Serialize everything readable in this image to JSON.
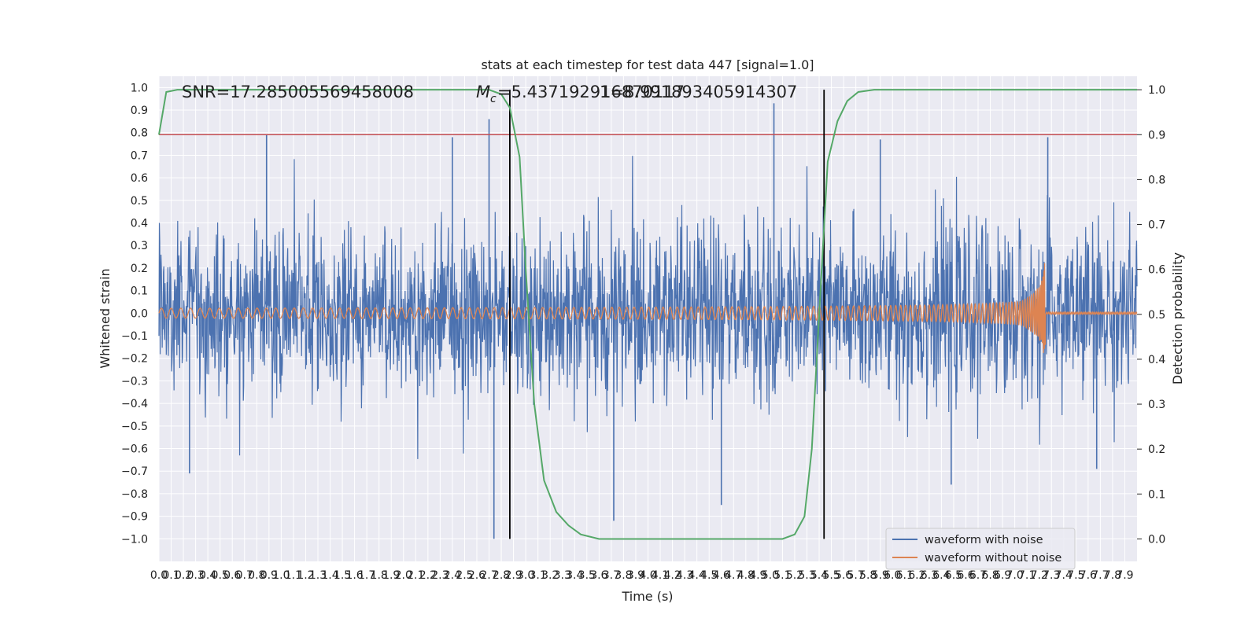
{
  "chart_data": {
    "type": "line",
    "title": "stats at each timestep for test data 447 [signal=1.0]",
    "xlabel": "Time (s)",
    "ylabel": "Whitened strain",
    "y2label": "Detection probability",
    "xlim": [
      0.0,
      8.0
    ],
    "ylim": [
      -1.1,
      1.05
    ],
    "y2lim": [
      -0.05,
      1.03
    ],
    "x_ticks": [
      "0.0",
      "0.1",
      "0.2",
      "0.3",
      "0.4",
      "0.5",
      "0.6",
      "0.7",
      "0.8",
      "0.9",
      "1.0",
      "1.1",
      "1.2",
      "1.3",
      "1.4",
      "1.5",
      "1.6",
      "1.7",
      "1.8",
      "1.9",
      "2.0",
      "2.1",
      "2.2",
      "2.3",
      "2.4",
      "2.5",
      "2.6",
      "2.7",
      "2.8",
      "2.9",
      "3.0",
      "3.1",
      "3.2",
      "3.3",
      "3.4",
      "3.5",
      "3.6",
      "3.7",
      "3.8",
      "3.9",
      "4.0",
      "4.1",
      "4.2",
      "4.3",
      "4.4",
      "4.5",
      "4.6",
      "4.7",
      "4.8",
      "4.9",
      "5.0",
      "5.1",
      "5.2",
      "5.3",
      "5.4",
      "5.5",
      "5.6",
      "5.7",
      "5.8",
      "5.9",
      "6.0",
      "6.1",
      "6.2",
      "6.3",
      "6.4",
      "6.5",
      "6.6",
      "6.7",
      "6.8",
      "6.9",
      "7.0",
      "7.1",
      "7.2",
      "7.3",
      "7.4",
      "7.5",
      "7.6",
      "7.7",
      "7.8",
      "7.9"
    ],
    "y_ticks": [
      "1.0",
      "0.9",
      "0.8",
      "0.7",
      "0.6",
      "0.5",
      "0.4",
      "0.3",
      "0.2",
      "0.1",
      "0.0",
      "−0.1",
      "−0.2",
      "−0.3",
      "−0.4",
      "−0.5",
      "−0.6",
      "−0.7",
      "−0.8",
      "−0.9",
      "−1.0"
    ],
    "y2_ticks": [
      "1.0",
      "0.9",
      "0.8",
      "0.7",
      "0.6",
      "0.5",
      "0.4",
      "0.3",
      "0.2",
      "0.1",
      "0.0"
    ],
    "annotations": {
      "snr": "SNR=17.285005569458008",
      "mc": "=5.437192916870117",
      "mc_prefix": "M",
      "mc_sub": "c",
      "overlap": "1=8.991893405914307"
    },
    "threshold": 0.9,
    "vertical_lines": [
      2.87,
      5.44
    ],
    "noise_spikes": [
      {
        "t": 0.88,
        "y": 0.79
      },
      {
        "t": 2.7,
        "y": 0.86
      },
      {
        "t": 2.4,
        "y": 0.78
      },
      {
        "t": 5.03,
        "y": 0.93
      },
      {
        "t": 7.27,
        "y": 0.78
      },
      {
        "t": 5.9,
        "y": 0.77
      },
      {
        "t": 2.74,
        "y": -1.0
      },
      {
        "t": 3.72,
        "y": -0.92
      },
      {
        "t": 4.6,
        "y": -0.85
      },
      {
        "t": 0.25,
        "y": -0.71
      },
      {
        "t": 6.48,
        "y": -0.76
      },
      {
        "t": 7.67,
        "y": -0.69
      }
    ],
    "probability": [
      {
        "t": 0.0,
        "p": 0.9
      },
      {
        "t": 0.06,
        "p": 0.995
      },
      {
        "t": 0.15,
        "p": 1.0
      },
      {
        "t": 2.7,
        "p": 1.0
      },
      {
        "t": 2.8,
        "p": 0.99
      },
      {
        "t": 2.87,
        "p": 0.96
      },
      {
        "t": 2.95,
        "p": 0.85
      },
      {
        "t": 3.0,
        "p": 0.6
      },
      {
        "t": 3.07,
        "p": 0.3
      },
      {
        "t": 3.15,
        "p": 0.13
      },
      {
        "t": 3.25,
        "p": 0.06
      },
      {
        "t": 3.35,
        "p": 0.03
      },
      {
        "t": 3.45,
        "p": 0.01
      },
      {
        "t": 3.6,
        "p": 0.0
      },
      {
        "t": 5.1,
        "p": 0.0
      },
      {
        "t": 5.2,
        "p": 0.01
      },
      {
        "t": 5.28,
        "p": 0.05
      },
      {
        "t": 5.34,
        "p": 0.2
      },
      {
        "t": 5.4,
        "p": 0.5
      },
      {
        "t": 5.47,
        "p": 0.84
      },
      {
        "t": 5.55,
        "p": 0.93
      },
      {
        "t": 5.63,
        "p": 0.975
      },
      {
        "t": 5.72,
        "p": 0.995
      },
      {
        "t": 5.85,
        "p": 1.0
      },
      {
        "t": 8.0,
        "p": 1.0
      }
    ],
    "series": [
      {
        "name": "waveform with noise",
        "color": "#4c72b0"
      },
      {
        "name": "waveform without noise",
        "color": "#dd8452"
      },
      {
        "color": "#55a868"
      },
      {
        "color": "#c44e52"
      }
    ],
    "merger_time": 7.25,
    "legend_position": "lower right",
    "grid": true
  }
}
